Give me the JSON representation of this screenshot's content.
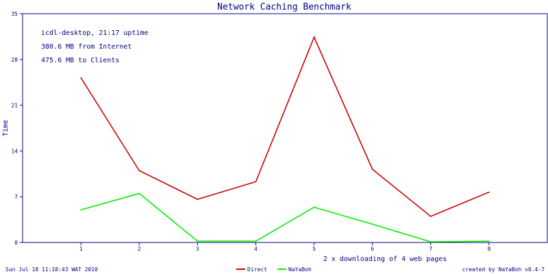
{
  "chart_data": {
    "type": "line",
    "title": "Network Caching Benchmark",
    "xlabel": "2 x downloading of 4 web pages",
    "ylabel": "Time",
    "x": [
      1,
      2,
      3,
      4,
      5,
      6,
      7,
      8
    ],
    "xlim": [
      0,
      9
    ],
    "ylim": [
      0,
      35
    ],
    "yticks": [
      0,
      7,
      14,
      21,
      28,
      35
    ],
    "series": [
      {
        "name": "Direct",
        "color": "#cc0000",
        "values": [
          25.2,
          11.0,
          6.6,
          9.3,
          31.4,
          11.2,
          4.0,
          7.7
        ]
      },
      {
        "name": "NaYaBoh",
        "color": "#00ee00",
        "values": [
          5.0,
          7.5,
          0.2,
          0.2,
          5.4,
          2.8,
          0.1,
          0.2
        ]
      }
    ],
    "annotations": [
      "icdl-desktop, 21:17 uptime",
      "380.6 MB from Internet",
      "475.6 MB to Clients"
    ],
    "legend_position": "bottom-center",
    "grid": false
  },
  "footer": {
    "timestamp": "Sun Jul 18 11:18:43 WAT 2010",
    "credit": "created by NaYaBoh v0.4-7"
  },
  "colors": {
    "text": "#000080",
    "axis": "#000080"
  }
}
